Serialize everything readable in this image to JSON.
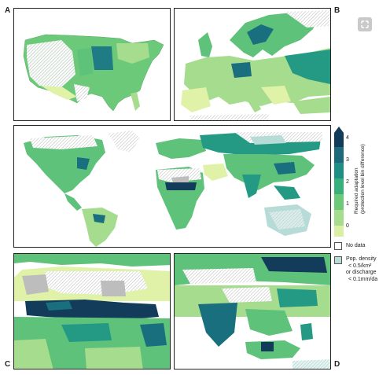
{
  "panel_labels": {
    "a": "A",
    "b": "B",
    "c": "C",
    "d": "D"
  },
  "colorbar": {
    "title_line1": "Required adaptation",
    "title_line2": "(protection level bin difference)",
    "ticks": [
      "4",
      "3",
      "2",
      "1",
      "0"
    ],
    "colors": [
      "#d9f0a3",
      "#a6dc8e",
      "#6cc97a",
      "#37b07c",
      "#1f8f85",
      "#1d6b7a",
      "#123c5a"
    ]
  },
  "legend": {
    "no_data_label": "No data",
    "no_data_color": "#ffffff",
    "sparse_line1": "Pop. density",
    "sparse_line2": "< 0.5/km²",
    "sparse_line3": "or discharge",
    "sparse_line4": "< 0.1mm/da",
    "sparse_color": "#b7dbd6"
  },
  "map_colors": {
    "level0": "#dff2a8",
    "level1": "#a6dc8e",
    "level2": "#5ec27a",
    "level3": "#249a84",
    "level4": "#1a6f7e",
    "level5": "#123c5a",
    "nodata": "#bdbdbd",
    "sparse": "#b7dbd6"
  },
  "toolbar": {
    "expand_icon": "expand-icon"
  }
}
